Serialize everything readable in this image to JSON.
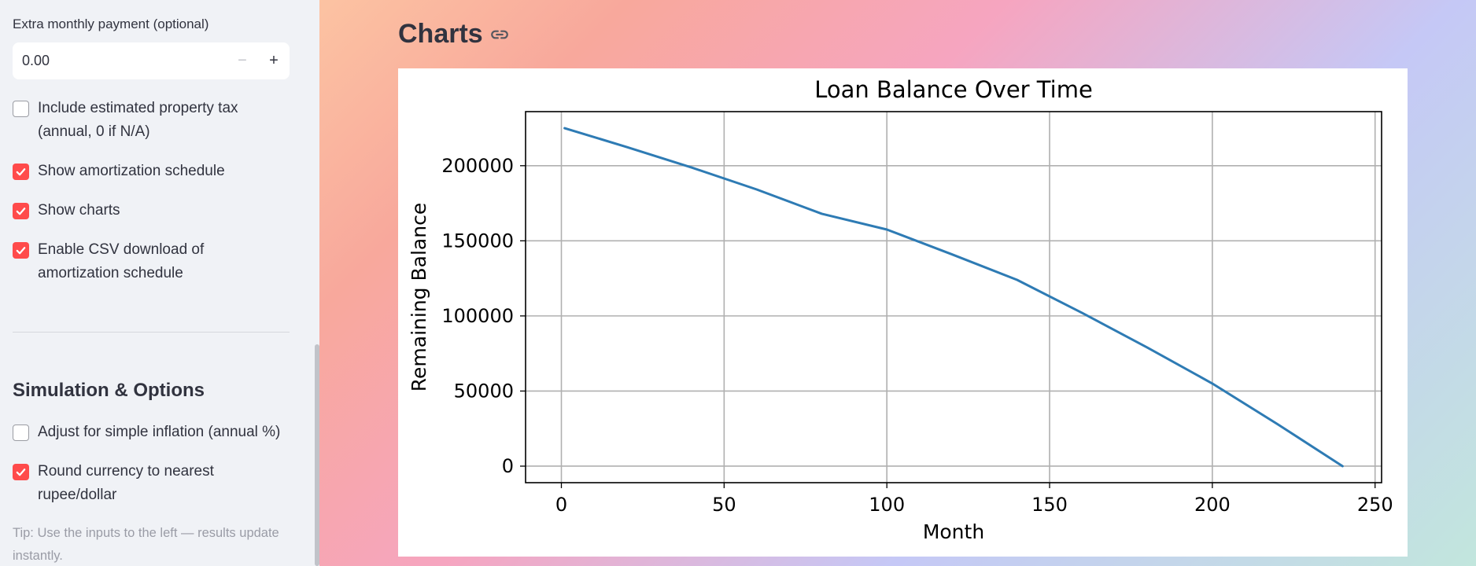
{
  "sidebar": {
    "extra_payment": {
      "label": "Extra monthly payment (optional)",
      "value": "0.00",
      "minus_label": "−",
      "plus_label": "+"
    },
    "options": [
      {
        "label": "Include estimated property tax (annual, 0 if N/A)",
        "checked": false
      },
      {
        "label": "Show amortization schedule",
        "checked": true
      },
      {
        "label": "Show charts",
        "checked": true
      },
      {
        "label": "Enable CSV download of amortization schedule",
        "checked": true
      }
    ],
    "section_title": "Simulation & Options",
    "sim_options": [
      {
        "label": "Adjust for simple inflation (annual %)",
        "checked": false
      },
      {
        "label": "Round currency to nearest rupee/dollar",
        "checked": true
      }
    ],
    "tip": "Tip: Use the inputs to the left — results update instantly."
  },
  "main": {
    "title": "Charts"
  },
  "colors": {
    "accent": "#ff4b4b",
    "line": "#2e7bb4"
  },
  "chart_data": {
    "type": "line",
    "title": "Loan Balance Over Time",
    "xlabel": "Month",
    "ylabel": "Remaining Balance",
    "xlim": [
      -11,
      252
    ],
    "ylim": [
      -11000,
      236000
    ],
    "xticks": [
      0,
      50,
      100,
      150,
      200,
      250
    ],
    "yticks": [
      0,
      50000,
      100000,
      150000,
      200000
    ],
    "grid": true,
    "series": [
      {
        "x": [
          1,
          20,
          40,
          60,
          80,
          100,
          120,
          140,
          160,
          180,
          200,
          220,
          240
        ],
        "values": [
          225000,
          212500,
          198800,
          184200,
          168000,
          157500,
          141000,
          124000,
          102000,
          79000,
          55000,
          28000,
          0
        ]
      }
    ]
  }
}
